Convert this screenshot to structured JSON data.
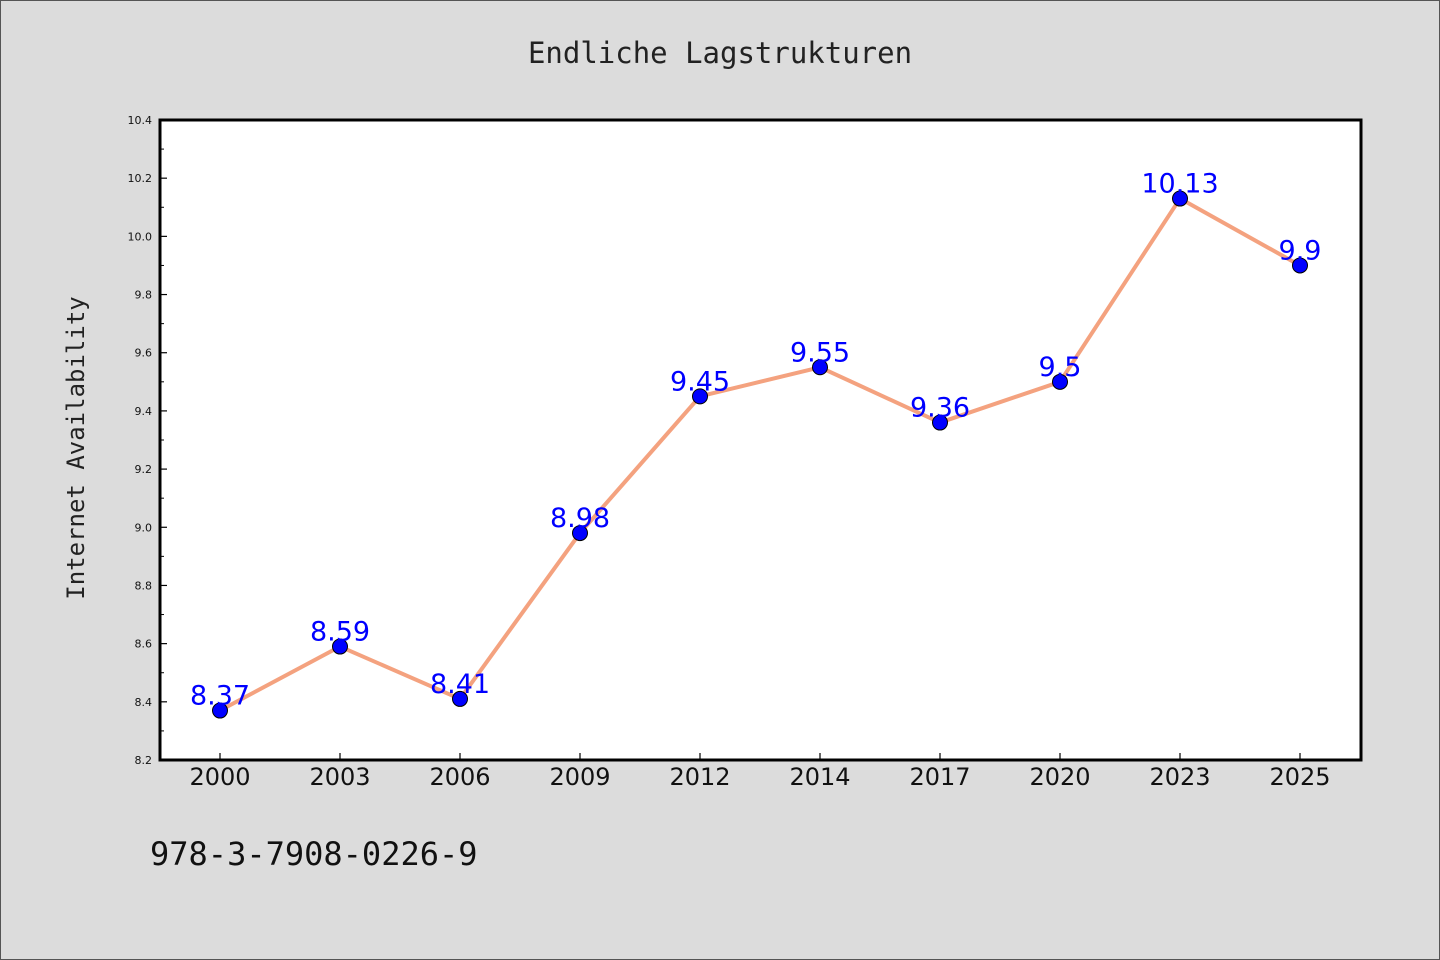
{
  "chart_data": {
    "type": "line",
    "title": "Endliche Lagstrukturen",
    "xlabel": "",
    "ylabel": "Internet Availability",
    "categories": [
      "2000",
      "2003",
      "2006",
      "2009",
      "2012",
      "2014",
      "2017",
      "2020",
      "2023",
      "2025"
    ],
    "series": [
      {
        "values": [
          8.37,
          8.59,
          8.41,
          8.98,
          9.45,
          9.55,
          9.36,
          9.5,
          10.13,
          9.9
        ],
        "labels": [
          "8.37",
          "8.59",
          "8.41",
          "8.98",
          "9.45",
          "9.55",
          "9.36",
          "9.5",
          "10.13",
          "9.9"
        ],
        "line_color": "#f4a27f",
        "marker_color": "#0000ff"
      }
    ],
    "ylim": [
      8.2,
      10.4
    ],
    "yticks": [
      "8.2",
      "8.4",
      "8.6",
      "8.8",
      "9.0",
      "9.2",
      "9.4",
      "9.6",
      "9.8",
      "10.0",
      "10.2",
      "10.4"
    ],
    "grid": false,
    "legend": "none"
  },
  "footer": {
    "isbn": "978-3-7908-0226-9"
  },
  "colors": {
    "background": "#dcdcdc",
    "plot_background": "#ffffff",
    "axis": "#000000",
    "label_text": "#0000ff"
  }
}
